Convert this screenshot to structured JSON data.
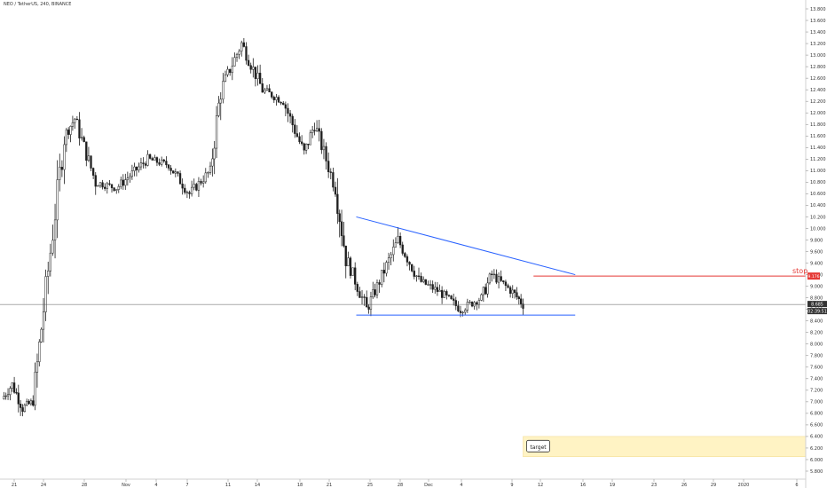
{
  "header": {
    "symbol_title": "NEO / TetherUS, 240, BINANCE"
  },
  "price_axis": {
    "ticks": [
      "13.800",
      "13.600",
      "13.400",
      "13.200",
      "13.000",
      "12.800",
      "12.600",
      "12.400",
      "12.200",
      "12.000",
      "11.800",
      "11.600",
      "11.400",
      "11.200",
      "11.000",
      "10.800",
      "10.600",
      "10.400",
      "10.200",
      "10.000",
      "9.800",
      "9.600",
      "9.400",
      "9.200",
      "9.000",
      "8.800",
      "8.600",
      "8.400",
      "8.200",
      "8.000",
      "7.800",
      "7.600",
      "7.400",
      "7.200",
      "7.000",
      "6.800",
      "6.600",
      "6.400",
      "6.200",
      "6.000",
      "5.800"
    ],
    "last_price_label": "8.685",
    "countdown_label": "02:39:51",
    "stop_price_label": "9.176"
  },
  "time_axis": {
    "ticks": [
      "21",
      "24",
      "28",
      "Nov",
      "4",
      "7",
      "11",
      "14",
      "18",
      "21",
      "25",
      "28",
      "Dec",
      "4",
      "9",
      "12",
      "16",
      "19",
      "23",
      "26",
      "29",
      "2020",
      "6"
    ]
  },
  "annotations": {
    "stop_label": "stop",
    "target_label": "target"
  },
  "colors": {
    "candle": "#1f1f1f",
    "trendline": "#2962ff",
    "stop_line": "#e53935",
    "target_zone": "#fff3c4",
    "target_border": "#f2d98a",
    "price_line": "#555555"
  },
  "chart_data": {
    "type": "candlestick",
    "title": "NEO / TetherUS, 240, BINANCE",
    "y_range": [
      5.8,
      13.8
    ],
    "x_range": [
      "Oct 21",
      "Jan 6"
    ],
    "approx_close_path": [
      [
        "Oct 21",
        7.05
      ],
      [
        "Oct 22",
        7.3
      ],
      [
        "Oct 23",
        6.9
      ],
      [
        "Oct 24",
        7.0
      ],
      [
        "Oct 25",
        8.6
      ],
      [
        "Oct 27",
        11.6
      ],
      [
        "Oct 28",
        11.9
      ],
      [
        "Oct 30",
        10.8
      ],
      [
        "Nov 1",
        10.7
      ],
      [
        "Nov 4",
        11.2
      ],
      [
        "Nov 6",
        11.1
      ],
      [
        "Nov 8",
        10.6
      ],
      [
        "Nov 10",
        11.0
      ],
      [
        "Nov 11",
        12.4
      ],
      [
        "Nov 13",
        13.2
      ],
      [
        "Nov 15",
        12.4
      ],
      [
        "Nov 17",
        12.2
      ],
      [
        "Nov 19",
        11.3
      ],
      [
        "Nov 20",
        11.8
      ],
      [
        "Nov 22",
        10.7
      ],
      [
        "Nov 23",
        9.5
      ],
      [
        "Nov 25",
        8.6
      ],
      [
        "Nov 26",
        9.0
      ],
      [
        "Nov 28",
        9.8
      ],
      [
        "Nov 30",
        9.1
      ],
      [
        "Dec 2",
        8.9
      ],
      [
        "Dec 4",
        8.6
      ],
      [
        "Dec 6",
        8.8
      ],
      [
        "Dec 7",
        9.2
      ],
      [
        "Dec 9",
        8.9
      ],
      [
        "Dec 10",
        8.685
      ]
    ],
    "last_price": 8.685,
    "upper_trendline": {
      "start": [
        "Nov 24",
        10.2
      ],
      "end": [
        "Dec 15",
        9.2
      ]
    },
    "support_line": {
      "start": [
        "Nov 24",
        8.5
      ],
      "end": [
        "Dec 15",
        8.5
      ]
    },
    "stop_level": 9.176,
    "target_zone": {
      "x_start": "Dec 10",
      "x_end": "Jan 6",
      "y_low": 6.05,
      "y_high": 6.4
    },
    "grid": false,
    "legend": "none"
  }
}
